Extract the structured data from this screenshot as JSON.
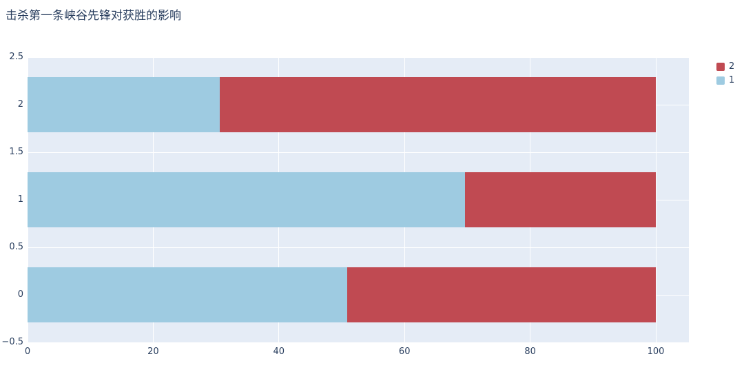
{
  "chart_data": {
    "type": "bar",
    "orientation": "horizontal",
    "stacked": true,
    "title": "击杀第一条峡谷先锋对获胜的影响",
    "categories": [
      0,
      1,
      2
    ],
    "series": [
      {
        "name": "1",
        "color": "#9ecbe1",
        "values": [
          50.9,
          69.6,
          30.6
        ]
      },
      {
        "name": "2",
        "color": "#c04a52",
        "values": [
          49.1,
          30.4,
          69.4
        ]
      }
    ],
    "legend_order": [
      "2",
      "1"
    ],
    "xlim": [
      0,
      105.26
    ],
    "ylim": [
      -0.5,
      2.5
    ],
    "x_ticks": [
      0,
      20,
      40,
      60,
      80,
      100
    ],
    "y_ticks": [
      -0.5,
      0,
      0.5,
      1,
      1.5,
      2,
      2.5
    ],
    "bar_thickness_units": 0.58,
    "plot_bg": "#e5ecf6",
    "grid_color": "#ffffff",
    "text_color": "#2a3f5f",
    "grid": true,
    "legend_position": "top-right"
  }
}
